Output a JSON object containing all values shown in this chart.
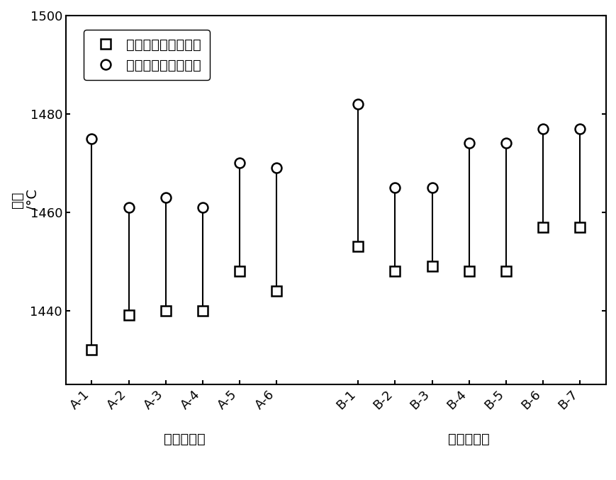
{
  "categories": [
    "A-1",
    "A-2",
    "A-3",
    "A-4",
    "A-5",
    "A-6",
    "B-1",
    "B-2",
    "B-3",
    "B-4",
    "B-5",
    "B-6",
    "B-7"
  ],
  "start_temps": [
    1432,
    1439,
    1440,
    1440,
    1448,
    1444,
    1453,
    1448,
    1449,
    1448,
    1448,
    1457,
    1457
  ],
  "end_temps": [
    1475,
    1461,
    1463,
    1461,
    1470,
    1469,
    1482,
    1465,
    1465,
    1474,
    1474,
    1477,
    1477
  ],
  "group_labels": [
    "澳洲铁矿石",
    "巴西铁矿石"
  ],
  "ylabel_chinese": "温度",
  "ylabel_unit": "/°C",
  "ylim": [
    1425,
    1500
  ],
  "yticks": [
    1440,
    1460,
    1480,
    1500
  ],
  "legend_square_label": "铁矿石软融起始温度",
  "legend_circle_label": "铁矿石软融终止温度",
  "background_color": "#ffffff",
  "line_color": "#000000",
  "marker_color": "#ffffff",
  "marker_edge_color": "#000000",
  "marker_size": 10,
  "line_width": 1.5,
  "font_size": 14,
  "tick_fontsize": 13
}
